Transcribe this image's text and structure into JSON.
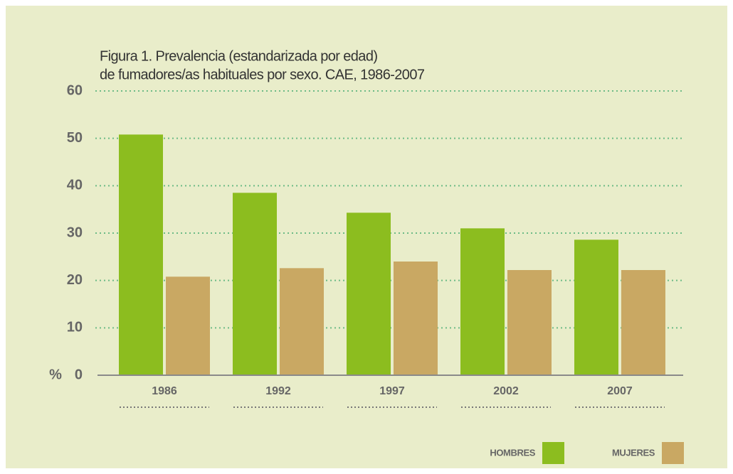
{
  "chart_data": {
    "type": "bar",
    "title": [
      "Figura 1. Prevalencia (estandarizada por edad)",
      "de fumadores/as habituales por sexo. CAE, 1986-2007"
    ],
    "ylabel": "%",
    "categories": [
      "1986",
      "1992",
      "1997",
      "2002",
      "2007"
    ],
    "series": [
      {
        "name": "HOMBRES",
        "color": "#8cbd1f",
        "values": [
          50.8,
          38.5,
          34.3,
          31.0,
          28.6
        ]
      },
      {
        "name": "MUJERES",
        "color": "#c9a863",
        "values": [
          20.8,
          22.6,
          24.0,
          22.2,
          22.2
        ]
      }
    ],
    "ylim": [
      0,
      60
    ],
    "yticks": [
      0,
      10,
      20,
      30,
      40,
      50,
      60
    ],
    "grid": true,
    "legend": "bottom-right"
  }
}
